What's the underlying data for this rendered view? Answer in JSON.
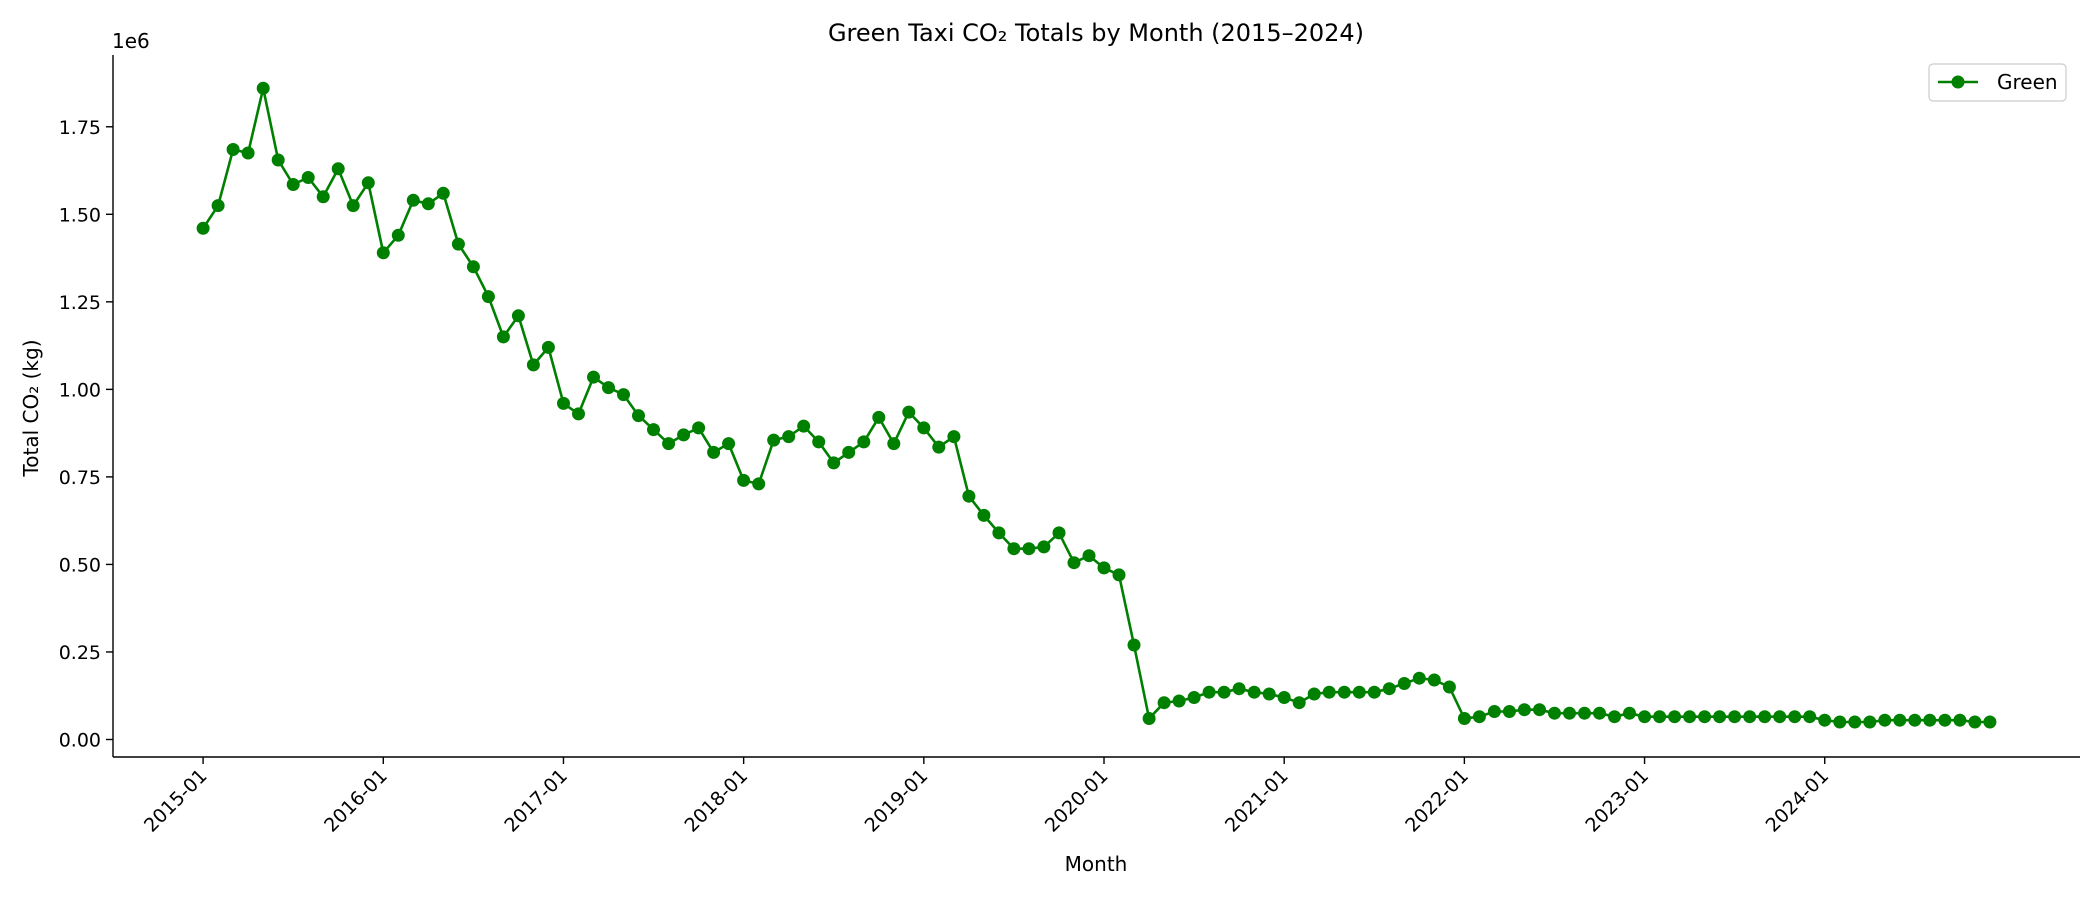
{
  "chart_data": {
    "type": "line",
    "title": "Green Taxi CO₂ Totals by Month (2015–2024)",
    "xlabel": "Month",
    "ylabel": "Total CO₂ (kg)",
    "y_offset_label": "1e6",
    "y_scale": 1000000,
    "ylim": [
      -0.05,
      1.955
    ],
    "yticks": [
      0.0,
      0.25,
      0.5,
      0.75,
      1.0,
      1.25,
      1.5,
      1.75
    ],
    "ytick_labels": [
      "0.00",
      "0.25",
      "0.50",
      "0.75",
      "1.00",
      "1.25",
      "1.50",
      "1.75"
    ],
    "xticks": [
      "2015-01",
      "2016-01",
      "2017-01",
      "2018-01",
      "2019-01",
      "2020-01",
      "2021-01",
      "2022-01",
      "2023-01",
      "2024-01"
    ],
    "xlim": [
      "2014-07",
      "2025-06"
    ],
    "grid": false,
    "legend_position": "top-right",
    "series": [
      {
        "name": "Green",
        "color": "#008000",
        "marker": "circle",
        "x": [
          "2015-01",
          "2015-02",
          "2015-03",
          "2015-04",
          "2015-05",
          "2015-06",
          "2015-07",
          "2015-08",
          "2015-09",
          "2015-10",
          "2015-11",
          "2015-12",
          "2016-01",
          "2016-02",
          "2016-03",
          "2016-04",
          "2016-05",
          "2016-06",
          "2016-07",
          "2016-08",
          "2016-09",
          "2016-10",
          "2016-11",
          "2016-12",
          "2017-01",
          "2017-02",
          "2017-03",
          "2017-04",
          "2017-05",
          "2017-06",
          "2017-07",
          "2017-08",
          "2017-09",
          "2017-10",
          "2017-11",
          "2017-12",
          "2018-01",
          "2018-02",
          "2018-03",
          "2018-04",
          "2018-05",
          "2018-06",
          "2018-07",
          "2018-08",
          "2018-09",
          "2018-10",
          "2018-11",
          "2018-12",
          "2019-01",
          "2019-02",
          "2019-03",
          "2019-04",
          "2019-05",
          "2019-06",
          "2019-07",
          "2019-08",
          "2019-09",
          "2019-10",
          "2019-11",
          "2019-12",
          "2020-01",
          "2020-02",
          "2020-03",
          "2020-04",
          "2020-05",
          "2020-06",
          "2020-07",
          "2020-08",
          "2020-09",
          "2020-10",
          "2020-11",
          "2020-12",
          "2021-01",
          "2021-02",
          "2021-03",
          "2021-04",
          "2021-05",
          "2021-06",
          "2021-07",
          "2021-08",
          "2021-09",
          "2021-10",
          "2021-11",
          "2021-12",
          "2022-01",
          "2022-02",
          "2022-03",
          "2022-04",
          "2022-05",
          "2022-06",
          "2022-07",
          "2022-08",
          "2022-09",
          "2022-10",
          "2022-11",
          "2022-12",
          "2023-01",
          "2023-02",
          "2023-03",
          "2023-04",
          "2023-05",
          "2023-06",
          "2023-07",
          "2023-08",
          "2023-09",
          "2023-10",
          "2023-11",
          "2023-12",
          "2024-01",
          "2024-02",
          "2024-03",
          "2024-04",
          "2024-05",
          "2024-06",
          "2024-07",
          "2024-08",
          "2024-09",
          "2024-10",
          "2024-11",
          "2024-12"
        ],
        "y": [
          1.46,
          1.525,
          1.685,
          1.675,
          1.86,
          1.655,
          1.585,
          1.605,
          1.55,
          1.63,
          1.525,
          1.59,
          1.39,
          1.44,
          1.54,
          1.53,
          1.56,
          1.415,
          1.35,
          1.265,
          1.15,
          1.21,
          1.07,
          1.12,
          0.96,
          0.93,
          1.035,
          1.005,
          0.985,
          0.925,
          0.885,
          0.845,
          0.87,
          0.89,
          0.82,
          0.845,
          0.74,
          0.73,
          0.855,
          0.865,
          0.895,
          0.85,
          0.79,
          0.82,
          0.85,
          0.92,
          0.845,
          0.935,
          0.89,
          0.835,
          0.865,
          0.695,
          0.64,
          0.59,
          0.545,
          0.545,
          0.55,
          0.59,
          0.505,
          0.525,
          0.49,
          0.47,
          0.27,
          0.06,
          0.105,
          0.11,
          0.12,
          0.135,
          0.135,
          0.145,
          0.135,
          0.13,
          0.12,
          0.105,
          0.13,
          0.135,
          0.135,
          0.135,
          0.135,
          0.145,
          0.16,
          0.175,
          0.17,
          0.15,
          0.06,
          0.065,
          0.08,
          0.08,
          0.085,
          0.085,
          0.075,
          0.075,
          0.075,
          0.075,
          0.065,
          0.075,
          0.065,
          0.065,
          0.065,
          0.065,
          0.065,
          0.065,
          0.065,
          0.065,
          0.065,
          0.065,
          0.065,
          0.065,
          0.055,
          0.05,
          0.05,
          0.05,
          0.055,
          0.055,
          0.055,
          0.055,
          0.055,
          0.055,
          0.05,
          0.05
        ]
      }
    ]
  }
}
